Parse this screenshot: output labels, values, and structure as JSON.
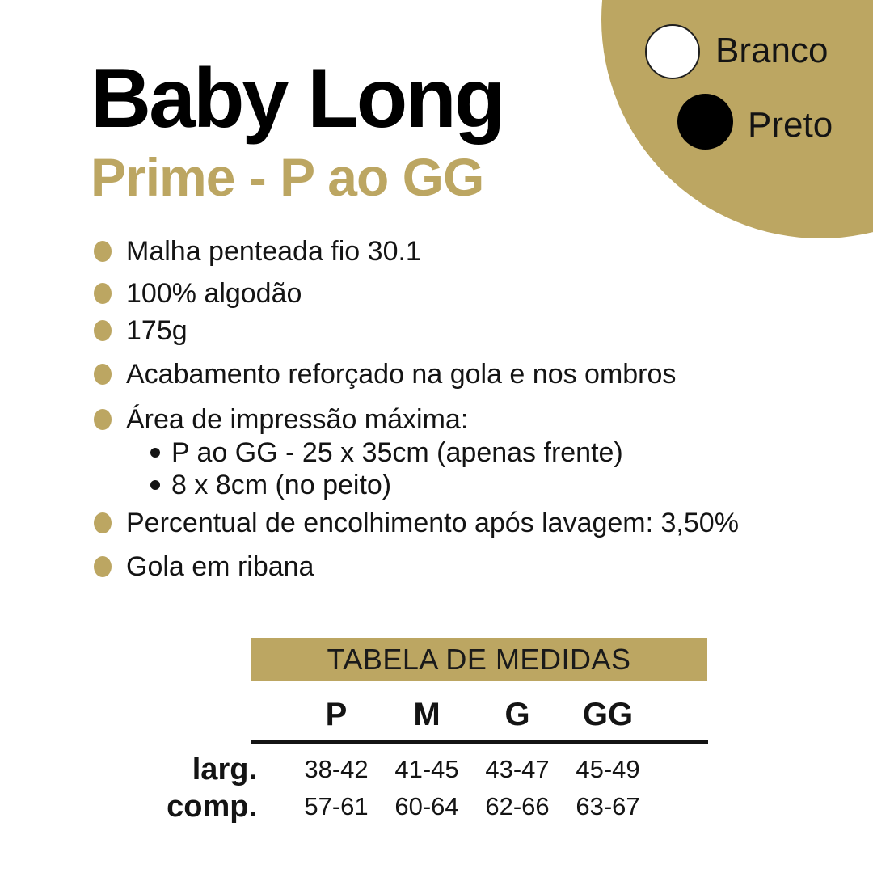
{
  "colors": {
    "accent_gold": "#BCA662",
    "text_black": "#141414",
    "swatch_white": "#FFFFFF",
    "swatch_black": "#000000"
  },
  "header": {
    "title": "Baby Long",
    "subtitle": "Prime - P ao GG"
  },
  "color_options": [
    {
      "label": "Branco",
      "swatch": "white-circle-icon"
    },
    {
      "label": "Preto",
      "swatch": "black-circle-icon"
    }
  ],
  "features": {
    "items": [
      {
        "text": "Malha penteada fio 30.1"
      },
      {
        "text": "100% algodão"
      },
      {
        "text": "175g"
      },
      {
        "text": "Acabamento reforçado na gola e nos ombros"
      },
      {
        "text": "Área de impressão máxima:",
        "sub_items": [
          "P ao GG - 25 x 35cm (apenas frente)",
          "8 x 8cm (no peito)"
        ]
      },
      {
        "text": "Percentual de encolhimento após lavagem: 3,50%"
      },
      {
        "text": "Gola em ribana"
      }
    ]
  },
  "size_table": {
    "title": "TABELA DE MEDIDAS",
    "columns": [
      "P",
      "M",
      "G",
      "GG"
    ],
    "rows": [
      {
        "label": "larg.",
        "values": [
          "38-42",
          "41-45",
          "43-47",
          "45-49"
        ]
      },
      {
        "label": "comp.",
        "values": [
          "57-61",
          "60-64",
          "62-66",
          "63-67"
        ]
      }
    ]
  }
}
